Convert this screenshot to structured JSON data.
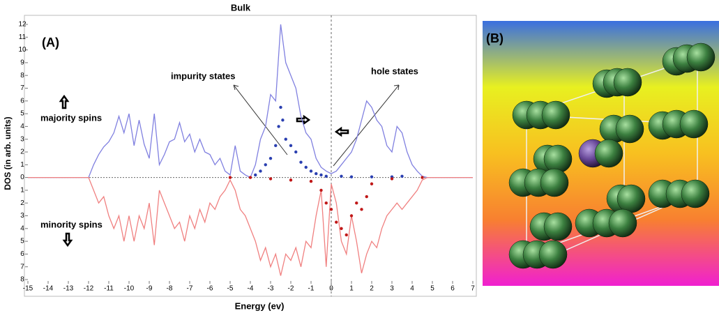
{
  "chart_data": {
    "type": "line",
    "title": "Bulk",
    "xlabel": "Energy (ev)",
    "ylabel": "DOS (in arb. units)",
    "panel_label": "(A)",
    "annotations": [
      "impurity states",
      "hole states",
      "majority spins",
      "minority spins"
    ],
    "xlim": [
      -15,
      7
    ],
    "xticks": [
      -15,
      -14,
      -13,
      -12,
      -11,
      -10,
      -9,
      -8,
      -7,
      -6,
      -5,
      -4,
      -3,
      -2,
      -1,
      0,
      1,
      2,
      3,
      4,
      5,
      6,
      7
    ],
    "ylim": [
      -8,
      12
    ],
    "yticks": [
      12,
      11,
      10,
      9,
      8,
      7,
      6,
      5,
      4,
      3,
      2,
      1,
      0,
      {
        "value": -1,
        "label": "1"
      },
      {
        "value": -2,
        "label": "2"
      },
      {
        "value": -3,
        "label": "3"
      },
      {
        "value": -4,
        "label": "4"
      },
      {
        "value": -5,
        "label": "5"
      },
      {
        "value": -6,
        "label": "6"
      },
      {
        "value": -7,
        "label": "7"
      },
      {
        "value": -8,
        "label": "8"
      }
    ],
    "zero_lines": true,
    "x": [
      -15,
      -12,
      -11.75,
      -11.5,
      -11.25,
      -11,
      -10.75,
      -10.5,
      -10.25,
      -10,
      -9.75,
      -9.5,
      -9.25,
      -9,
      -8.75,
      -8.5,
      -8.25,
      -8,
      -7.75,
      -7.5,
      -7.25,
      -7,
      -6.75,
      -6.5,
      -6.25,
      -6,
      -5.75,
      -5.5,
      -5.25,
      -5,
      -4.75,
      -4.5,
      -4.25,
      -4,
      -3.75,
      -3.5,
      -3.25,
      -3,
      -2.75,
      -2.5,
      -2.25,
      -2,
      -1.75,
      -1.5,
      -1.25,
      -1,
      -0.75,
      -0.5,
      -0.25,
      0,
      0.25,
      0.5,
      0.75,
      1,
      1.25,
      1.5,
      1.75,
      2,
      2.25,
      2.5,
      2.75,
      3,
      3.25,
      3.5,
      3.75,
      4,
      4.25,
      4.5,
      4.75,
      7
    ],
    "series": [
      {
        "color": "#8080e0",
        "values": [
          0,
          0,
          1,
          1.8,
          2.4,
          2.8,
          3.5,
          4.8,
          3.5,
          5,
          2.5,
          4.5,
          2.6,
          1.5,
          5,
          1,
          1.8,
          2.8,
          3,
          4.3,
          2.8,
          3.4,
          2,
          3,
          2,
          1.8,
          1,
          1.5,
          0.5,
          0.2,
          2.5,
          0.5,
          0.2,
          0,
          1,
          3,
          4,
          6.5,
          6,
          12,
          9,
          8,
          7,
          4.8,
          3.5,
          3,
          1.5,
          0.8,
          0.5,
          0.3,
          0.5,
          1,
          1.5,
          2,
          3,
          4.5,
          6,
          5.5,
          4.5,
          4,
          2.5,
          2,
          4,
          3.5,
          2,
          1,
          0.5,
          0.1,
          0,
          0
        ]
      },
      {
        "color": "#f08080",
        "values": [
          0,
          0,
          -1,
          -2,
          -1.5,
          -3,
          -4,
          -3,
          -5,
          -3,
          -5,
          -3,
          -4,
          -2,
          -5.3,
          -1,
          -2,
          -3,
          -4,
          -3.5,
          -5,
          -3,
          -4,
          -2.5,
          -3.5,
          -2,
          -2.5,
          -1.5,
          -1,
          -0.2,
          -1,
          -2.5,
          -3,
          -4,
          -5,
          -6.5,
          -5.5,
          -7,
          -6,
          -7.7,
          -6,
          -6.5,
          -5.5,
          -7,
          -5,
          -5.5,
          -3,
          -1,
          -7,
          -0.5,
          -2,
          -5,
          -6,
          -3,
          -5,
          -7.5,
          -6,
          -5,
          -5.5,
          -4,
          -3,
          -2.5,
          -2,
          -2.5,
          -2,
          -1.5,
          -1,
          -0.2,
          0,
          0
        ]
      }
    ],
    "dots": [
      {
        "color": "#2a3fb0",
        "x": [
          -3.75,
          -3.5,
          -3.25,
          -3,
          -2.75,
          -2.6,
          -2.5,
          -2.4,
          -2.25,
          -2,
          -1.75,
          -1.5,
          -1.25,
          -1,
          -0.75,
          -0.5,
          -0.25,
          0.5,
          1,
          2,
          3,
          3.5
        ],
        "values": [
          0.2,
          0.5,
          1,
          1.5,
          2.5,
          4,
          5.5,
          4.5,
          3,
          2.5,
          2,
          1.2,
          0.8,
          0.5,
          0.3,
          0.2,
          0.1,
          0.1,
          0.05,
          0.05,
          0.05,
          0.1
        ]
      },
      {
        "color": "#c01818",
        "x": [
          -5,
          -4,
          -3,
          -2,
          -1,
          -0.5,
          -0.25,
          0,
          0.25,
          0.5,
          0.75,
          1,
          1.25,
          1.5,
          1.75,
          2,
          3,
          4.5
        ],
        "values": [
          0,
          0,
          -0.1,
          -0.2,
          -0.3,
          -1,
          -2,
          -2.5,
          -3.5,
          -4,
          -4.5,
          -3,
          -2,
          -2.5,
          -1.5,
          -0.5,
          -0.1,
          0
        ]
      }
    ]
  },
  "structure": {
    "label": "(B)"
  }
}
